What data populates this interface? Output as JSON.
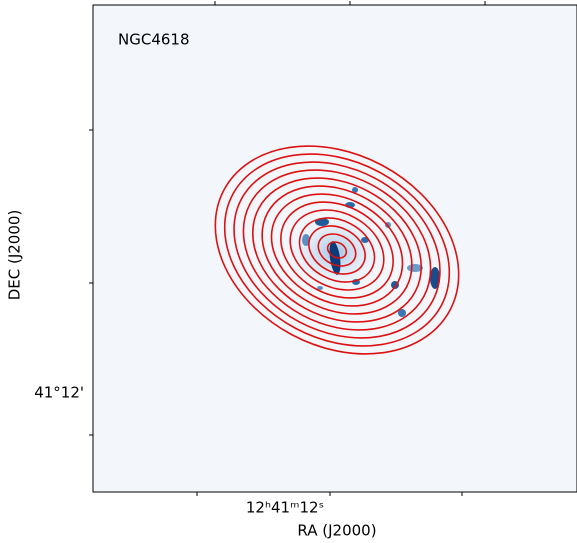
{
  "chart_data": {
    "type": "image",
    "title": "NGC4618",
    "x_label": "RA (J2000)",
    "y_label": "DEC (J2000)",
    "x_tick_label": "12ʰ41ᵐ12ˢ",
    "y_tick_label": "41°12'",
    "contour_color": "#dd1111"
  }
}
